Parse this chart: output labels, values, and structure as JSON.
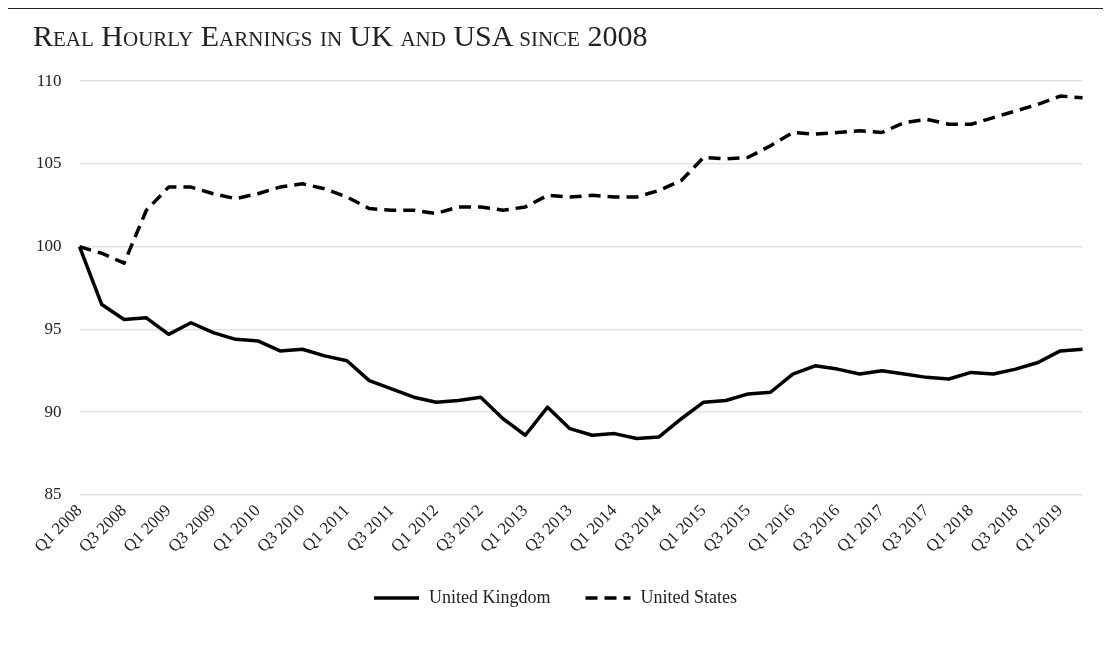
{
  "chart_data": {
    "type": "line",
    "title": "Real Hourly Earnings in UK and USA since 2008",
    "categories": [
      "Q1 2008",
      null,
      "Q3 2008",
      null,
      "Q1 2009",
      null,
      "Q3 2009",
      null,
      "Q1 2010",
      null,
      "Q3 2010",
      null,
      "Q1 2011",
      null,
      "Q3 2011",
      null,
      "Q1 2012",
      null,
      "Q3 2012",
      null,
      "Q1 2013",
      null,
      "Q3 2013",
      null,
      "Q1 2014",
      null,
      "Q3 2014",
      null,
      "Q1 2015",
      null,
      "Q3 2015",
      null,
      "Q1 2016",
      null,
      "Q3 2016",
      null,
      "Q1 2017",
      null,
      "Q3 2017",
      null,
      "Q1 2018",
      null,
      "Q3 2018",
      null,
      "Q1 2019",
      null
    ],
    "series": [
      {
        "name": "United Kingdom",
        "color": "#000000",
        "line_style": "solid",
        "values": [
          100,
          96.5,
          95.6,
          95.7,
          94.7,
          95.4,
          94.8,
          94.4,
          94.3,
          93.7,
          93.8,
          93.4,
          93.1,
          91.9,
          91.4,
          90.9,
          90.6,
          90.7,
          90.9,
          89.6,
          88.6,
          90.3,
          89.0,
          88.6,
          88.7,
          88.4,
          88.5,
          89.6,
          90.6,
          90.7,
          91.1,
          91.2,
          92.3,
          92.8,
          92.6,
          92.3,
          92.5,
          92.3,
          92.1,
          92.0,
          92.4,
          92.3,
          92.6,
          93.0,
          93.7,
          93.8
        ]
      },
      {
        "name": "United States",
        "color": "#000000",
        "line_style": "dashed",
        "values": [
          100,
          99.6,
          99.0,
          102.2,
          103.6,
          103.6,
          103.2,
          102.9,
          103.2,
          103.6,
          103.8,
          103.5,
          103.0,
          102.3,
          102.2,
          102.2,
          102.0,
          102.4,
          102.4,
          102.2,
          102.4,
          103.1,
          103.0,
          103.1,
          103.0,
          103.0,
          103.4,
          104.0,
          105.4,
          105.3,
          105.4,
          106.1,
          106.9,
          106.8,
          106.9,
          107.0,
          106.9,
          107.5,
          107.7,
          107.4,
          107.4,
          107.8,
          108.2,
          108.6,
          109.1,
          109.0
        ]
      }
    ],
    "ylim": [
      85,
      110
    ],
    "yticks": [
      85,
      90,
      95,
      100,
      105,
      110
    ],
    "grid": "y",
    "legend": "bottom",
    "marker": "none"
  }
}
